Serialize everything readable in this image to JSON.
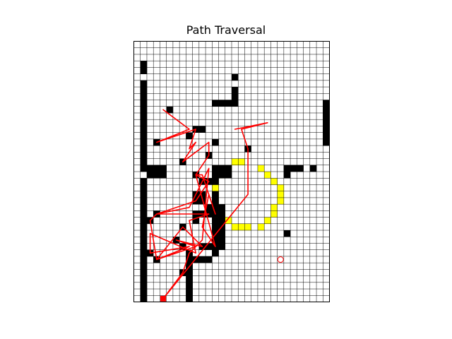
{
  "chart_data": {
    "type": "grid-path",
    "title": "Path Traversal",
    "grid": {
      "cols": 30,
      "rows": 40,
      "gridlines": true,
      "gridline_color": "#000000",
      "background_color": "#ffffff"
    },
    "colors": {
      "obstacle": "#000000",
      "target": "#ffff00",
      "path": "#ff0000",
      "goal_marker": "#ff0000"
    },
    "obstacles": [
      [
        1,
        3
      ],
      [
        1,
        4
      ],
      [
        1,
        6
      ],
      [
        1,
        7
      ],
      [
        1,
        8
      ],
      [
        1,
        9
      ],
      [
        1,
        10
      ],
      [
        1,
        11
      ],
      [
        1,
        12
      ],
      [
        1,
        13
      ],
      [
        1,
        14
      ],
      [
        1,
        15
      ],
      [
        1,
        16
      ],
      [
        1,
        17
      ],
      [
        1,
        18
      ],
      [
        1,
        19
      ],
      [
        1,
        21
      ],
      [
        1,
        22
      ],
      [
        1,
        23
      ],
      [
        1,
        24
      ],
      [
        1,
        25
      ],
      [
        1,
        26
      ],
      [
        1,
        27
      ],
      [
        1,
        28
      ],
      [
        1,
        29
      ],
      [
        1,
        30
      ],
      [
        1,
        31
      ],
      [
        1,
        32
      ],
      [
        1,
        33
      ],
      [
        1,
        34
      ],
      [
        1,
        35
      ],
      [
        1,
        36
      ],
      [
        1,
        37
      ],
      [
        1,
        38
      ],
      [
        1,
        39
      ],
      [
        2,
        19
      ],
      [
        3,
        19
      ],
      [
        4,
        19
      ],
      [
        2,
        20
      ],
      [
        3,
        20
      ],
      [
        4,
        20
      ],
      [
        15,
        5
      ],
      [
        15,
        7
      ],
      [
        15,
        8
      ],
      [
        12,
        9
      ],
      [
        13,
        9
      ],
      [
        14,
        9
      ],
      [
        15,
        9
      ],
      [
        29,
        9
      ],
      [
        29,
        10
      ],
      [
        29,
        11
      ],
      [
        29,
        12
      ],
      [
        29,
        13
      ],
      [
        29,
        14
      ],
      [
        29,
        15
      ],
      [
        5,
        10
      ],
      [
        9,
        13
      ],
      [
        10,
        13
      ],
      [
        3,
        15
      ],
      [
        8,
        14
      ],
      [
        12,
        15
      ],
      [
        17,
        16
      ],
      [
        7,
        18
      ],
      [
        11,
        17
      ],
      [
        10,
        21
      ],
      [
        11,
        21
      ],
      [
        9,
        20
      ],
      [
        12,
        19
      ],
      [
        12,
        20
      ],
      [
        12,
        21
      ],
      [
        13,
        19
      ],
      [
        14,
        19
      ],
      [
        13,
        20
      ],
      [
        14,
        20
      ],
      [
        9,
        23
      ],
      [
        10,
        23
      ],
      [
        9,
        24
      ],
      [
        10,
        24
      ],
      [
        12,
        23
      ],
      [
        12,
        24
      ],
      [
        11,
        25
      ],
      [
        12,
        25
      ],
      [
        13,
        25
      ],
      [
        9,
        26
      ],
      [
        10,
        26
      ],
      [
        11,
        26
      ],
      [
        12,
        26
      ],
      [
        13,
        26
      ],
      [
        12,
        27
      ],
      [
        13,
        27
      ],
      [
        12,
        28
      ],
      [
        13,
        28
      ],
      [
        12,
        29
      ],
      [
        13,
        29
      ],
      [
        12,
        30
      ],
      [
        13,
        30
      ],
      [
        12,
        31
      ],
      [
        13,
        31
      ],
      [
        12,
        32
      ],
      [
        3,
        26
      ],
      [
        2,
        27
      ],
      [
        7,
        28
      ],
      [
        9,
        27
      ],
      [
        6,
        30
      ],
      [
        7,
        31
      ],
      [
        2,
        32
      ],
      [
        8,
        32
      ],
      [
        3,
        33
      ],
      [
        11,
        31
      ],
      [
        10,
        31
      ],
      [
        8,
        33
      ],
      [
        9,
        33
      ],
      [
        10,
        33
      ],
      [
        11,
        33
      ],
      [
        8,
        34
      ],
      [
        8,
        35
      ],
      [
        8,
        36
      ],
      [
        8,
        37
      ],
      [
        8,
        38
      ],
      [
        8,
        39
      ],
      [
        7,
        35
      ],
      [
        23,
        19
      ],
      [
        24,
        19
      ],
      [
        25,
        19
      ],
      [
        23,
        20
      ],
      [
        27,
        19
      ],
      [
        23,
        29
      ]
    ],
    "target_cells": [
      [
        15,
        18
      ],
      [
        16,
        18
      ],
      [
        14,
        19
      ],
      [
        19,
        19
      ],
      [
        13,
        20
      ],
      [
        20,
        20
      ],
      [
        12,
        21
      ],
      [
        21,
        21
      ],
      [
        12,
        22
      ],
      [
        22,
        22
      ],
      [
        12,
        23
      ],
      [
        22,
        23
      ],
      [
        12,
        24
      ],
      [
        22,
        24
      ],
      [
        12,
        25
      ],
      [
        21,
        25
      ],
      [
        13,
        26
      ],
      [
        21,
        26
      ],
      [
        14,
        27
      ],
      [
        20,
        27
      ],
      [
        15,
        28
      ],
      [
        16,
        28
      ],
      [
        17,
        28
      ],
      [
        19,
        28
      ]
    ],
    "path": [
      [
        4.5,
        10.5
      ],
      [
        8.5,
        13.5
      ],
      [
        3.5,
        15.5
      ],
      [
        9.5,
        13.5
      ],
      [
        8.5,
        16.5
      ],
      [
        9.5,
        15.5
      ],
      [
        7.5,
        18.5
      ],
      [
        11.5,
        15.5
      ],
      [
        11.5,
        17.5
      ],
      [
        9.5,
        20.5
      ],
      [
        10.5,
        20.5
      ],
      [
        12.5,
        26.5
      ],
      [
        11.5,
        23.5
      ],
      [
        10.5,
        28.5
      ],
      [
        12.5,
        31.5
      ],
      [
        9.5,
        20.5
      ],
      [
        11.5,
        21.5
      ],
      [
        9.5,
        24.5
      ],
      [
        3.5,
        26.5
      ],
      [
        11.5,
        26.5
      ],
      [
        8.5,
        27.5
      ],
      [
        9.5,
        32.5
      ],
      [
        2.5,
        29.5
      ],
      [
        2.5,
        32.5
      ],
      [
        8.5,
        31.5
      ],
      [
        3.5,
        33.5
      ],
      [
        9.5,
        31.5
      ],
      [
        6.5,
        30.5
      ],
      [
        10.5,
        31.5
      ],
      [
        7.5,
        28.5
      ],
      [
        3.5,
        33.5
      ],
      [
        2.5,
        27.5
      ],
      [
        3.5,
        26.5
      ],
      [
        8.5,
        25.5
      ],
      [
        11.5,
        19.5
      ],
      [
        10.5,
        30.5
      ],
      [
        8.5,
        32.5
      ],
      [
        7.5,
        35.5
      ],
      [
        4.5,
        39.5
      ],
      [
        17.5,
        23.5
      ],
      [
        17.5,
        16.5
      ],
      [
        16.5,
        13.5
      ],
      [
        20.5,
        12.5
      ],
      [
        15.5,
        13.5
      ]
    ],
    "start_marker": [
      4.5,
      39.5
    ],
    "goal_marker": [
      22.5,
      33.5
    ],
    "xlim": [
      0,
      30
    ],
    "ylim": [
      40,
      0
    ]
  }
}
